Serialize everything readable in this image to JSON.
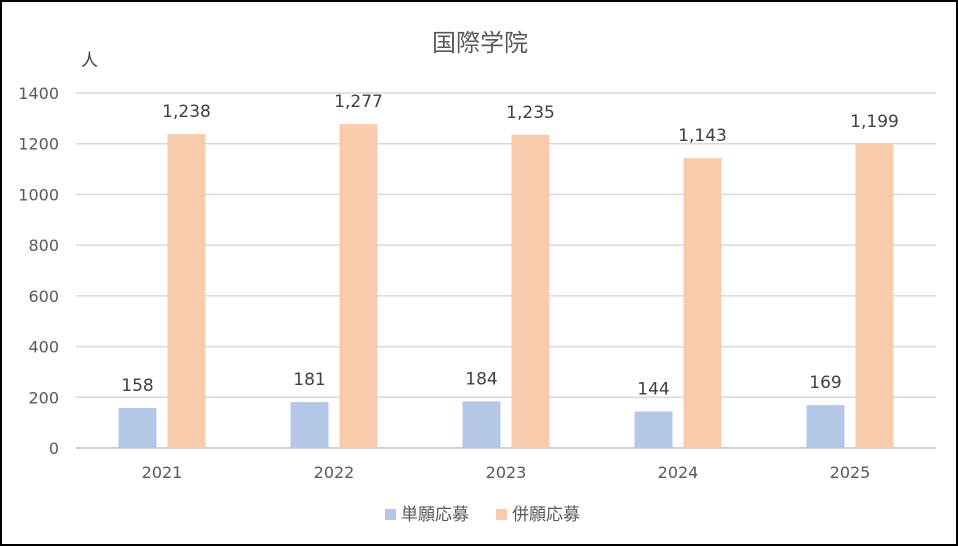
{
  "chart_data": {
    "type": "bar",
    "title": "国際学院",
    "ylabel": "人",
    "xlabel": "",
    "categories": [
      "2021",
      "2022",
      "2023",
      "2024",
      "2025"
    ],
    "series": [
      {
        "name": "単願応募",
        "values": [
          158,
          181,
          184,
          144,
          169
        ],
        "labels": [
          "158",
          "181",
          "184",
          "144",
          "169"
        ],
        "color": "#b4c7e7"
      },
      {
        "name": "併願応募",
        "values": [
          1238,
          1277,
          1235,
          1143,
          1199
        ],
        "labels": [
          "1,238",
          "1,277",
          "1,235",
          "1,143",
          "1,199"
        ],
        "color": "#f8cbad"
      }
    ],
    "ylim": [
      0,
      1400
    ],
    "yticks": [
      "0",
      "200",
      "400",
      "600",
      "800",
      "1000",
      "1200",
      "1400"
    ],
    "grid": true,
    "legend": "bottom"
  }
}
